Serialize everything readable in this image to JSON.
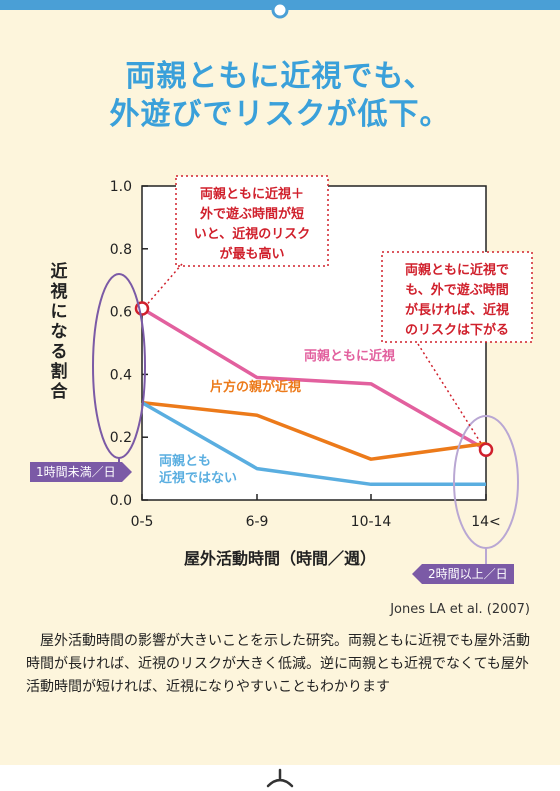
{
  "title": {
    "line1": "両親ともに近視でも、",
    "line2": "外遊びでリスクが低下。"
  },
  "source": "Jones LA et al. (2007)",
  "description": "屋外活動時間の影響が大きいことを示した研究。両親ともに近視でも屋外活動時間が長ければ、近視のリスクが大きく低減。逆に両親とも近視でなくても屋外活動時間が短ければ、近視になりやすいこともわかります",
  "callouts": {
    "high": [
      "両親ともに近視＋",
      "外で遊ぶ時間が短",
      "いと、近視のリスク",
      "が最も高い"
    ],
    "low": [
      "両親ともに近視で",
      "も、外で遊ぶ時間",
      "が長ければ、近視",
      "のリスクは下がる"
    ]
  },
  "badges": {
    "short": "1時間未満／日",
    "long": "2時間以上／日"
  },
  "colors": {
    "title": "#3aa0da",
    "both_parents": "#e2609e",
    "one_parent": "#ec7a1a",
    "neither_parent": "#5aaee0",
    "callout_text": "#d0202c",
    "badge": "#7b5aa6"
  },
  "chart_data": {
    "type": "line",
    "xlabel": "屋外活動時間（時間／週）",
    "ylabel": "近視になる割合",
    "categories": [
      "0-5",
      "6-9",
      "10-14",
      "14<"
    ],
    "ylim": [
      0,
      1.0
    ],
    "yticks": [
      "0.0",
      "0.2",
      "0.4",
      "0.6",
      "0.8",
      "1.0"
    ],
    "series": [
      {
        "name": "両親ともに近視",
        "values": [
          0.61,
          0.39,
          0.37,
          0.16
        ]
      },
      {
        "name": "片方の親が近視",
        "values": [
          0.31,
          0.27,
          0.13,
          0.18
        ]
      },
      {
        "name": "両親とも近視ではない",
        "values": [
          0.31,
          0.1,
          0.05,
          0.05
        ]
      }
    ]
  }
}
